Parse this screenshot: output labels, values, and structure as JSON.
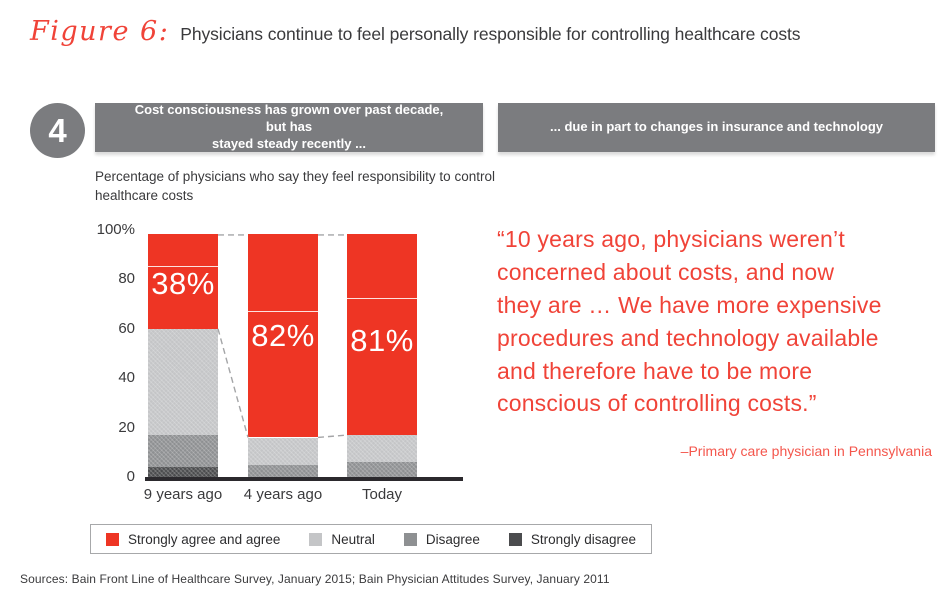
{
  "figure": {
    "label": "Figure 6:",
    "title": "Physicians continue to feel personally responsible for controlling healthcare costs"
  },
  "step_number": "4",
  "banners": {
    "left": "Cost consciousness has grown over past decade, but has\nstayed steady recently ...",
    "right": "... due in part to changes in insurance and technology"
  },
  "chart_data": {
    "type": "bar",
    "stacked": true,
    "title": "Percentage of physicians who say they feel responsibility to control\nhealthcare costs",
    "unit": "%",
    "ylim": [
      0,
      100
    ],
    "yticks": [
      "100%",
      "80",
      "60",
      "40",
      "20",
      "0"
    ],
    "grid": false,
    "categories": [
      "9 years ago",
      "4 years ago",
      "Today"
    ],
    "series": [
      {
        "name": "Strongly disagree",
        "color": "#4b4c4e",
        "texture": "hatch",
        "values": [
          4,
          0,
          0
        ]
      },
      {
        "name": "Disagree",
        "color": "#8e9092",
        "texture": "hatch",
        "values": [
          13,
          5,
          6
        ]
      },
      {
        "name": "Neutral",
        "color": "#c4c5c7",
        "texture": "hatch",
        "values": [
          43,
          11,
          11
        ]
      },
      {
        "name": "Agree",
        "color": "#ee3524",
        "values": [
          25,
          51,
          55
        ]
      },
      {
        "name": "Strongly agree",
        "color": "#ee3524",
        "divider": "bottom",
        "values": [
          13,
          31,
          26
        ]
      }
    ],
    "bar_totals_label": [
      {
        "text": "38%",
        "center_pct": 78
      },
      {
        "text": "82%",
        "center_pct": 57
      },
      {
        "text": "81%",
        "center_pct": 55
      }
    ],
    "legend_position": "bottom",
    "legend": [
      {
        "label": "Strongly agree and agree",
        "color": "#ee3524"
      },
      {
        "label": "Neutral",
        "color": "#c4c5c7"
      },
      {
        "label": "Disagree",
        "color": "#8e9092"
      },
      {
        "label": "Strongly disagree",
        "color": "#4b4c4e"
      }
    ],
    "connectors": "dashed lines join bar tops and red-segment bottoms of adjacent bars"
  },
  "quote": {
    "text": "“10 years ago, physicians weren’t\nconcerned about costs, and now\nthey are … We have more expensive\nprocedures and technology available\nand therefore have to be more\nconscious of controlling costs.”",
    "attribution": "–Primary care physician in Pennsylvania"
  },
  "sources": "Sources: Bain Front Line of Healthcare Survey, January 2015; Bain Physician Attitudes Survey, January 2011",
  "colors": {
    "accent_red": "#ee3524",
    "quote_red": "#f04338",
    "attribution_red": "#f4564c",
    "banner_gray": "#7b7c7f",
    "text_dark": "#3a3a3c",
    "axis_black": "#2b292d",
    "connector_gray": "#a4a5a7"
  }
}
